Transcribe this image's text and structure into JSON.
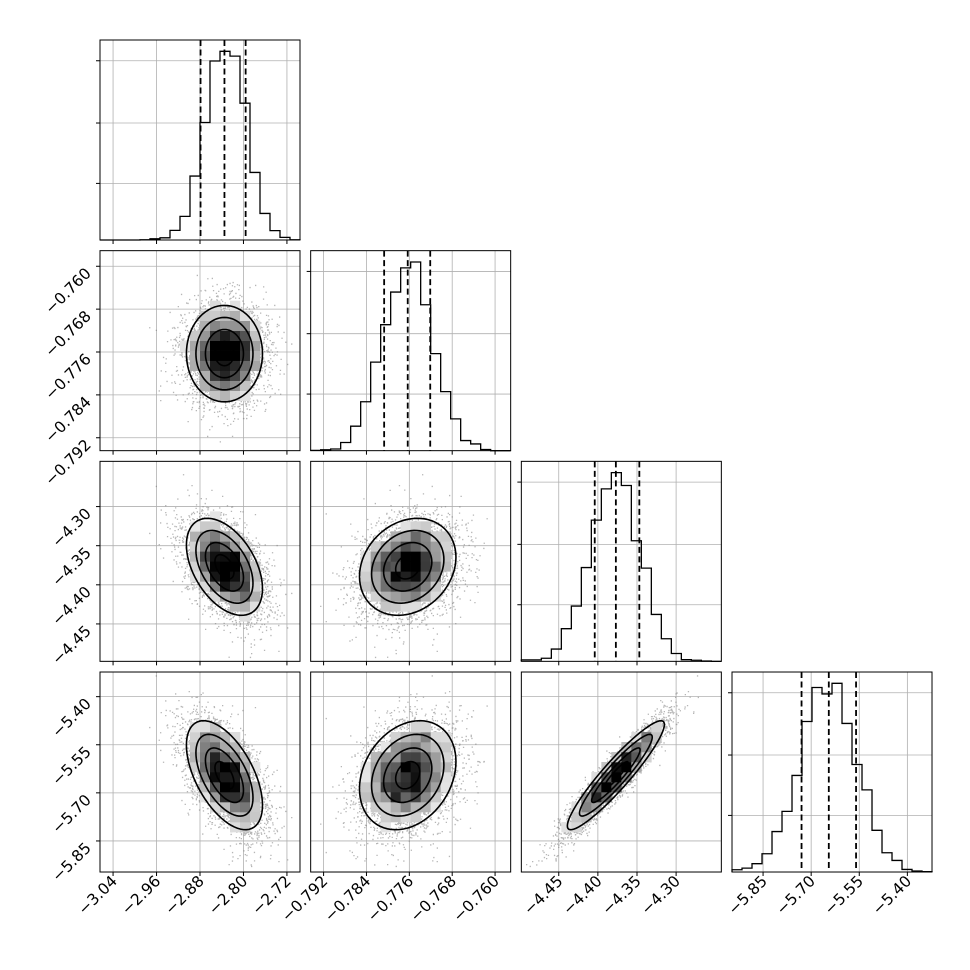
{
  "chart_data": {
    "type": "corner",
    "title": "",
    "parameters": [
      {
        "mean": -2.835,
        "sd": 0.035,
        "range": [
          -3.06,
          -2.7
        ],
        "ticks": [
          -3.04,
          -2.96,
          -2.88,
          -2.8,
          -2.72
        ],
        "tick_labels": [
          "−3.04",
          "−2.96",
          "−2.88",
          "−2.80",
          "−2.72"
        ],
        "quantiles": [
          -2.879,
          -2.835,
          -2.796
        ]
      },
      {
        "mean": -0.7763,
        "sd": 0.0045,
        "range": [
          -0.794,
          -0.7575
        ],
        "ticks": [
          -0.792,
          -0.784,
          -0.776,
          -0.768,
          -0.76
        ],
        "tick_labels": [
          "−0.792",
          "−0.784",
          "−0.776",
          "−0.768",
          "−0.760"
        ],
        "quantiles": [
          -0.7807,
          -0.7763,
          -0.7721
        ]
      },
      {
        "mean": -4.377,
        "sd": 0.031,
        "range": [
          -4.495,
          -4.245
        ],
        "ticks": [
          -4.45,
          -4.4,
          -4.35,
          -4.3
        ],
        "tick_labels": [
          "−4.45",
          "−4.40",
          "−4.35",
          "−4.30"
        ],
        "quantiles": [
          -4.404,
          -4.377,
          -4.347
        ]
      },
      {
        "mean": -5.645,
        "sd": 0.085,
        "range": [
          -5.94,
          -5.33
        ],
        "ticks": [
          -5.85,
          -5.7,
          -5.55,
          -5.4
        ],
        "tick_labels": [
          "−5.85",
          "−5.70",
          "−5.55",
          "−5.40"
        ],
        "quantiles": [
          -5.73,
          -5.645,
          -5.56
        ]
      }
    ],
    "correlations": [
      [
        1,
        0,
        -0.45,
        -0.55
      ],
      [
        0,
        1,
        0.2,
        0.25
      ],
      [
        -0.45,
        0.2,
        1,
        0.93
      ],
      [
        -0.55,
        0.25,
        0.93,
        1
      ]
    ],
    "histogram_bins": 20,
    "contour_levels_sigma": [
      0.5,
      1.0,
      1.5,
      2.0
    ],
    "grid": true,
    "colors": {
      "contour": "#000000",
      "density": "#000000",
      "points": "#7a7a7a",
      "grid": "#b0b0b0"
    }
  }
}
